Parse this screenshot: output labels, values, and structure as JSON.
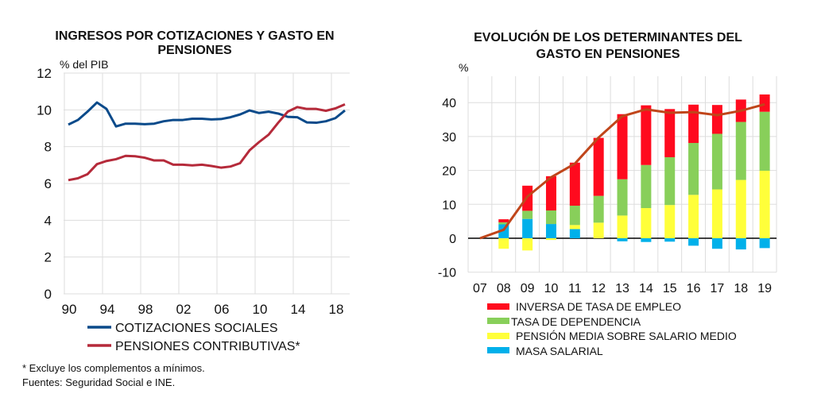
{
  "colors": {
    "grid": "#dddddd",
    "cotizaciones": "#0a4a8a",
    "pensiones": "#b52a3a",
    "inversa": "#ff0a1e",
    "dependencia": "#88cf5a",
    "pension_media": "#ffff3a",
    "masa": "#00b0ea",
    "total_line": "#c0451a"
  },
  "chart_data": [
    {
      "type": "line",
      "title_lines": [
        "INGRESOS POR COTIZACIONES Y GASTO EN",
        "PENSIONES"
      ],
      "ylabel": "% del PIB",
      "ylim": [
        0,
        12
      ],
      "yticks": [
        "0",
        "2",
        "4",
        "6",
        "8",
        "10",
        "12"
      ],
      "xticks": [
        "90",
        "94",
        "98",
        "02",
        "06",
        "10",
        "14",
        "18"
      ],
      "x": [
        1990,
        1991,
        1992,
        1993,
        1994,
        1995,
        1996,
        1997,
        1998,
        1999,
        2000,
        2001,
        2002,
        2003,
        2004,
        2005,
        2006,
        2007,
        2008,
        2009,
        2010,
        2011,
        2012,
        2013,
        2014,
        2015,
        2016,
        2017,
        2018,
        2019
      ],
      "series": [
        {
          "name": "COTIZACIONES SOCIALES",
          "values": [
            9.2,
            9.45,
            9.9,
            10.4,
            10.05,
            9.1,
            9.25,
            9.25,
            9.22,
            9.25,
            9.38,
            9.45,
            9.45,
            9.52,
            9.52,
            9.48,
            9.5,
            9.6,
            9.75,
            9.97,
            9.83,
            9.9,
            9.8,
            9.62,
            9.6,
            9.32,
            9.3,
            9.38,
            9.55,
            9.97
          ]
        },
        {
          "name": "PENSIONES CONTRIBUTIVAS*",
          "values": [
            6.18,
            6.28,
            6.5,
            7.05,
            7.22,
            7.32,
            7.5,
            7.48,
            7.4,
            7.25,
            7.25,
            7.02,
            7.02,
            6.98,
            7.02,
            6.95,
            6.86,
            6.92,
            7.1,
            7.8,
            8.25,
            8.65,
            9.3,
            9.9,
            10.15,
            10.05,
            10.05,
            9.95,
            10.08,
            10.3
          ]
        }
      ],
      "grid": true,
      "legend": "bottom",
      "notes": [
        "* Excluye los complementos a mínimos.",
        "Fuentes: Seguridad Social e INE."
      ]
    },
    {
      "type": "bar",
      "stacked": true,
      "title_lines": [
        "EVOLUCIÓN DE LOS DETERMINANTES DEL",
        "GASTO EN PENSIONES"
      ],
      "ylabel": "%",
      "ylim": [
        -10,
        45
      ],
      "yticks": [
        "-10",
        "0",
        "10",
        "20",
        "30",
        "40"
      ],
      "categories": [
        "07",
        "08",
        "09",
        "10",
        "11",
        "12",
        "13",
        "14",
        "15",
        "16",
        "17",
        "18",
        "19"
      ],
      "series": [
        {
          "name": "MASA SALARIAL",
          "key": "masa",
          "values": [
            0,
            4.1,
            5.7,
            4.2,
            2.7,
            0,
            -0.9,
            -1.1,
            -1.0,
            -2.2,
            -3.1,
            -3.3,
            -2.9
          ]
        },
        {
          "name": "PENSIÓN MEDIA SOBRE SALARIO MEDIO",
          "key": "pension_media",
          "values": [
            0,
            -3.1,
            -3.6,
            -0.5,
            1.2,
            4.6,
            6.7,
            8.9,
            9.8,
            12.8,
            14.4,
            17.2,
            19.9
          ]
        },
        {
          "name": "TASA DE DEPENDENCIA",
          "key": "dependencia",
          "values": [
            0,
            0.6,
            2.4,
            4.0,
            5.7,
            7.9,
            10.7,
            12.7,
            14.1,
            15.3,
            16.4,
            17.1,
            17.4
          ]
        },
        {
          "name": "INVERSA DE TASA DE EMPLEO",
          "key": "inversa",
          "values": [
            0,
            0.9,
            7.4,
            10.1,
            12.7,
            17.1,
            19.2,
            17.6,
            14.2,
            11.3,
            8.5,
            6.6,
            5.1
          ]
        }
      ],
      "total_line": [
        0,
        2.5,
        12.3,
        18.0,
        22.0,
        29.7,
        36.0,
        38.0,
        37.0,
        37.2,
        36.3,
        37.6,
        39.5
      ],
      "legend_order": [
        "INVERSA DE TASA DE EMPLEO",
        "TASA DE DEPENDENCIA",
        "PENSIÓN MEDIA SOBRE SALARIO MEDIO",
        "MASA SALARIAL"
      ],
      "grid": true,
      "legend": "bottom"
    }
  ]
}
